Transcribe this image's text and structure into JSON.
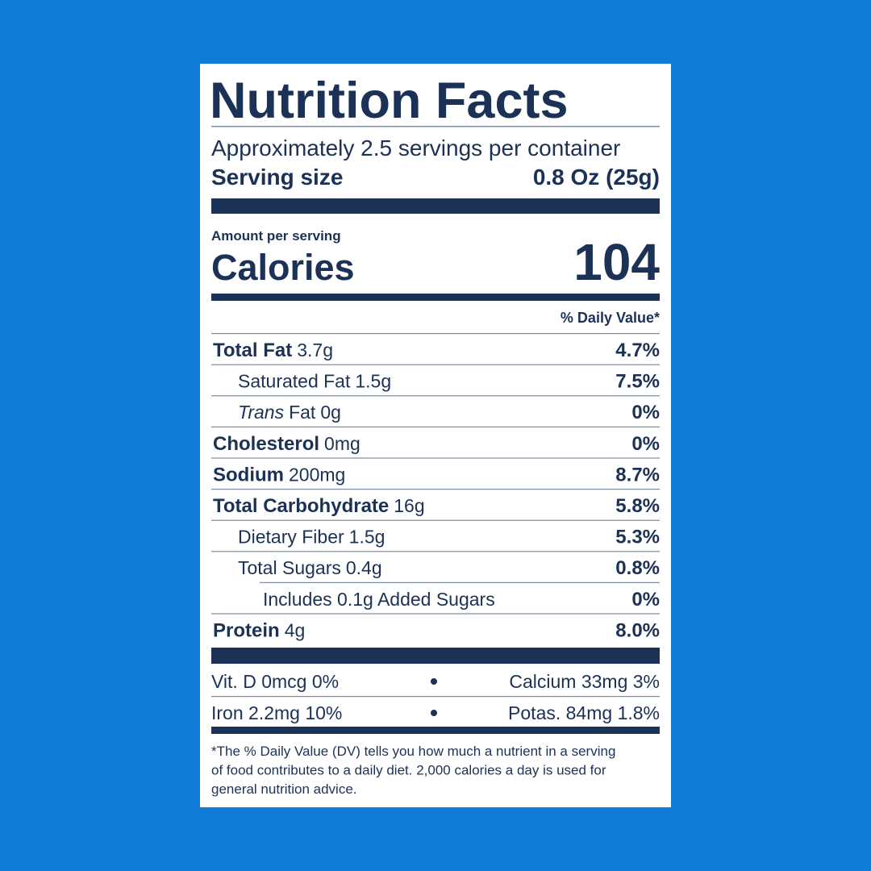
{
  "title": "Nutrition Facts",
  "servings": "Approximately 2.5 servings per container",
  "serving_size": {
    "label": "Serving size",
    "value": "0.8 Oz (25g)"
  },
  "amount_per_serving": "Amount per serving",
  "calories": {
    "label": "Calories",
    "value": 104
  },
  "daily_value_header": "% Daily Value*",
  "nutrients": [
    {
      "name": "Total Fat",
      "amount": "3.7g",
      "dv": "4.7%"
    },
    {
      "name": "Saturated Fat",
      "amount": "1.5g",
      "dv": "7.5%"
    },
    {
      "name_italic": "Trans",
      "name": "Fat",
      "amount": "0g",
      "dv": "0%"
    },
    {
      "name": "Cholesterol",
      "amount": "0mg",
      "dv": "0%"
    },
    {
      "name": "Sodium",
      "amount": "200mg",
      "dv": "8.7%"
    },
    {
      "name": "Total Carbohydrate",
      "amount": "16g",
      "dv": "5.8%"
    },
    {
      "name": "Dietary Fiber",
      "amount": "1.5g",
      "dv": "5.3%"
    },
    {
      "name": "Total Sugars",
      "amount": "0.4g",
      "dv": "0.8%"
    },
    {
      "name": "Includes 0.1g Added Sugars",
      "dv": "0%"
    },
    {
      "name": "Protein",
      "amount": "4g",
      "dv": "8.0%"
    }
  ],
  "vitamins": [
    [
      "Vit. D 0mcg 0%",
      "Calcium 33mg 3%"
    ],
    [
      "Iron 2.2mg 10%",
      "Potas. 84mg 1.8%"
    ]
  ],
  "footnote": [
    "*The % Daily Value (DV) tells you how much a nutrient in a serving",
    "of food contributes to a daily diet. 2,000 calories a day is used for",
    "general nutrition advice."
  ]
}
